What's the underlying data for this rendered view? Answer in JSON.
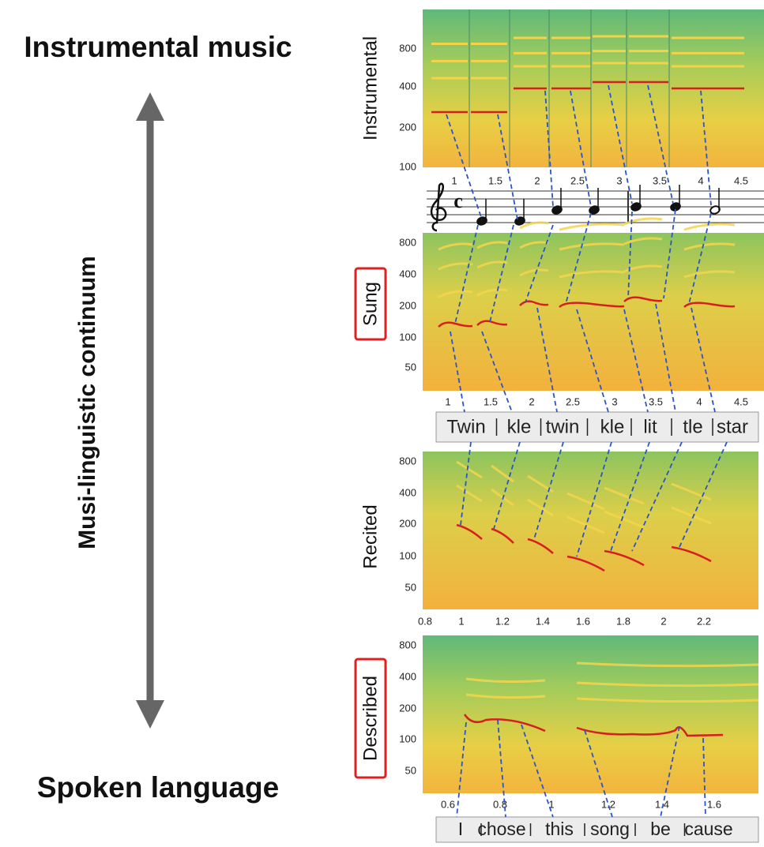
{
  "left": {
    "top_label": "Instrumental music",
    "axis_label": "Musi-linguistic continuum",
    "bottom_label": "Spoken language"
  },
  "panels": [
    {
      "label": "Instrumental",
      "yticks": [
        "800",
        "400",
        "200",
        "100"
      ],
      "xticks": [
        "1",
        "1.5",
        "2",
        "2.5",
        "3",
        "3.5",
        "4",
        "4.5"
      ]
    },
    {
      "label": "Sung",
      "yticks": [
        "800",
        "400",
        "200",
        "100",
        "50"
      ],
      "xticks": [
        "1",
        "1.5",
        "2",
        "2.5",
        "3",
        "3.5",
        "4",
        "4.5"
      ]
    },
    {
      "label": "Recited",
      "yticks": [
        "800",
        "400",
        "200",
        "100",
        "50"
      ],
      "xticks": [
        "0.8",
        "1",
        "1.2",
        "1.4",
        "1.6",
        "1.8",
        "2",
        "2.2"
      ]
    },
    {
      "label": "Described",
      "yticks": [
        "800",
        "400",
        "200",
        "100",
        "50"
      ],
      "xticks": [
        "0.6",
        "0.8",
        "1",
        "1.2",
        "1.4",
        "1.6"
      ]
    }
  ],
  "staff": {
    "time_signature": "c"
  },
  "sung_lyrics": [
    "Twin",
    "kle",
    "twin",
    "kle",
    "lit",
    "tle",
    "star"
  ],
  "described_lyrics": [
    "I",
    "chose",
    "this",
    "song",
    "be",
    "cause"
  ]
}
